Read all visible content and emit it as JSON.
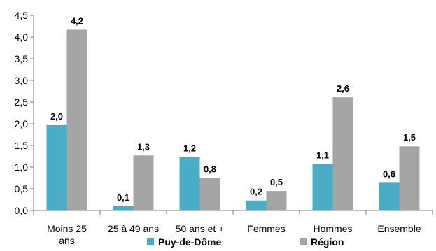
{
  "chart_data": {
    "type": "bar",
    "categories": [
      "Moins 25 ans",
      "25 à 49 ans",
      "50 ans et +",
      "Femmes",
      "Hommes",
      "Ensemble"
    ],
    "category_lines": [
      [
        "Moins 25",
        "ans"
      ],
      [
        "25 à 49 ans"
      ],
      [
        "50 ans et +"
      ],
      [
        "Femmes"
      ],
      [
        "Hommes"
      ],
      [
        "Ensemble"
      ]
    ],
    "series": [
      {
        "name": "Puy-de-Dôme",
        "color": "#4bacc6",
        "values": [
          1.97,
          0.1,
          1.23,
          0.23,
          1.07,
          0.64
        ],
        "labels": [
          "2,0",
          "0,1",
          "1,2",
          "0,2",
          "1,1",
          "0,6"
        ]
      },
      {
        "name": "Région",
        "color": "#a5a5a5",
        "values": [
          4.17,
          1.27,
          0.75,
          0.45,
          2.61,
          1.48
        ],
        "labels": [
          "4,2",
          "1,3",
          "0,8",
          "0,5",
          "2,6",
          "1,5"
        ]
      }
    ],
    "y_ticks": [
      "0,0",
      "0,5",
      "1,0",
      "1,5",
      "2,0",
      "2,5",
      "3,0",
      "3,5",
      "4,0",
      "4,5"
    ],
    "ylim": [
      0,
      4.5
    ],
    "grid": false,
    "legend_position": "bottom",
    "title": "",
    "xlabel": "",
    "ylabel": ""
  }
}
